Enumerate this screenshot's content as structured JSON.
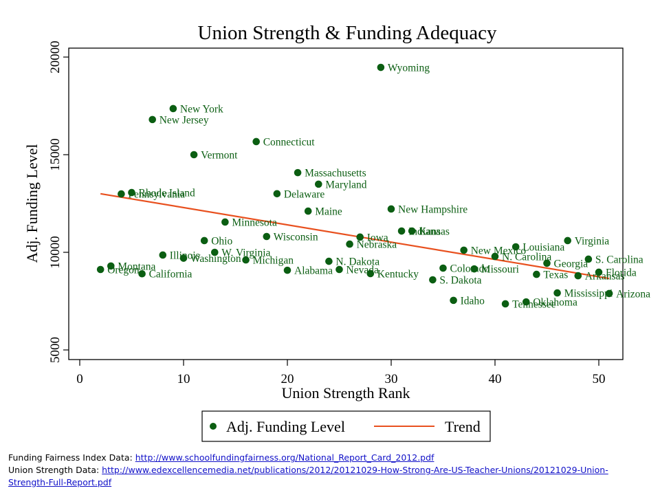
{
  "chart_data": {
    "type": "scatter",
    "title": "Union Strength & Funding Adequacy",
    "xlabel": "Union Strength Rank",
    "ylabel": "Adj. Funding Level",
    "xlim": [
      -0.7,
      52.3
    ],
    "ylim": [
      4600,
      20500
    ],
    "xticks": [
      0,
      10,
      20,
      30,
      40,
      50
    ],
    "yticks": [
      5000,
      10000,
      15000,
      20000
    ],
    "grid": false,
    "legend": {
      "placement": "bottom-center",
      "entries": [
        {
          "label": "Adj. Funding Level",
          "kind": "marker"
        },
        {
          "label": "Trend",
          "kind": "line"
        }
      ]
    },
    "colors": {
      "points": "#0b5e12",
      "trend": "#e8501e",
      "labels": "#0b5e12"
    },
    "series": [
      {
        "name": "Adj. Funding Level",
        "points": [
          {
            "label": "Oregon",
            "x": 2,
            "y": 9120
          },
          {
            "label": "Montana",
            "x": 3,
            "y": 9300
          },
          {
            "label": "Pennsylvania",
            "x": 4,
            "y": 12990
          },
          {
            "label": "Rhode Island",
            "x": 5,
            "y": 13060
          },
          {
            "label": "California",
            "x": 6,
            "y": 8900
          },
          {
            "label": "New Jersey",
            "x": 7,
            "y": 16800
          },
          {
            "label": "Illinois",
            "x": 8,
            "y": 9860
          },
          {
            "label": "New York",
            "x": 9,
            "y": 17360
          },
          {
            "label": "Washington",
            "x": 10,
            "y": 9700
          },
          {
            "label": "Vermont",
            "x": 11,
            "y": 15000
          },
          {
            "label": "Ohio",
            "x": 12,
            "y": 10600
          },
          {
            "label": "W. Virginia",
            "x": 13,
            "y": 10000
          },
          {
            "label": "Minnesota",
            "x": 14,
            "y": 11550
          },
          {
            "label": "Michigan",
            "x": 16,
            "y": 9610
          },
          {
            "label": "Connecticut",
            "x": 17,
            "y": 15670
          },
          {
            "label": "Wisconsin",
            "x": 18,
            "y": 10810
          },
          {
            "label": "Delaware",
            "x": 19,
            "y": 13000
          },
          {
            "label": "Alabama",
            "x": 20,
            "y": 9080
          },
          {
            "label": "Massachusetts",
            "x": 21,
            "y": 14080
          },
          {
            "label": "Maine",
            "x": 22,
            "y": 12110
          },
          {
            "label": "Maryland",
            "x": 23,
            "y": 13490
          },
          {
            "label": "N. Dakota",
            "x": 24,
            "y": 9540
          },
          {
            "label": "Nevada",
            "x": 25,
            "y": 9120
          },
          {
            "label": "Nebraska",
            "x": 26,
            "y": 10420
          },
          {
            "label": "Iowa",
            "x": 27,
            "y": 10780
          },
          {
            "label": "Kentucky",
            "x": 28,
            "y": 8910
          },
          {
            "label": "Wyoming",
            "x": 29,
            "y": 19470
          },
          {
            "label": "New Hampshire",
            "x": 30,
            "y": 12220
          },
          {
            "label": "Indiana",
            "x": 31,
            "y": 11090
          },
          {
            "label": "Kansas",
            "x": 32,
            "y": 11090
          },
          {
            "label": "S. Dakota",
            "x": 34,
            "y": 8590
          },
          {
            "label": "Colorado",
            "x": 35,
            "y": 9190
          },
          {
            "label": "Idaho",
            "x": 36,
            "y": 7540
          },
          {
            "label": "New Mexico",
            "x": 37,
            "y": 10110
          },
          {
            "label": "Missouri",
            "x": 38,
            "y": 9150
          },
          {
            "label": "N. Carolina",
            "x": 40,
            "y": 9790
          },
          {
            "label": "Tennessee",
            "x": 41,
            "y": 7360
          },
          {
            "label": "Louisiana",
            "x": 42,
            "y": 10280
          },
          {
            "label": "Oklahoma",
            "x": 43,
            "y": 7460
          },
          {
            "label": "Texas",
            "x": 44,
            "y": 8870
          },
          {
            "label": "Georgia",
            "x": 45,
            "y": 9440
          },
          {
            "label": "Mississippi",
            "x": 46,
            "y": 7920
          },
          {
            "label": "Virginia",
            "x": 47,
            "y": 10600
          },
          {
            "label": "Arkansas",
            "x": 48,
            "y": 8800
          },
          {
            "label": "S. Carolina",
            "x": 49,
            "y": 9650
          },
          {
            "label": "Florida",
            "x": 50,
            "y": 8980
          },
          {
            "label": "Arizona",
            "x": 51,
            "y": 7890
          }
        ]
      },
      {
        "name": "Trend",
        "type": "line",
        "points": [
          {
            "x": 2,
            "y": 13000
          },
          {
            "x": 51,
            "y": 8660
          }
        ]
      }
    ]
  },
  "footer": {
    "lines": [
      {
        "prefix": "Funding Fairness Index Data: ",
        "link_text": "http://www.schoolfundingfairness.org/National_Report_Card_2012.pdf"
      },
      {
        "prefix": "Union Strength Data: ",
        "link_text": "http://www.edexcellencemedia.net/publications/2012/20121029-How-Strong-Are-US-Teacher-Unions/20121029-Union-",
        "link_text_cont": "Strength-Full-Report.pdf"
      }
    ]
  }
}
